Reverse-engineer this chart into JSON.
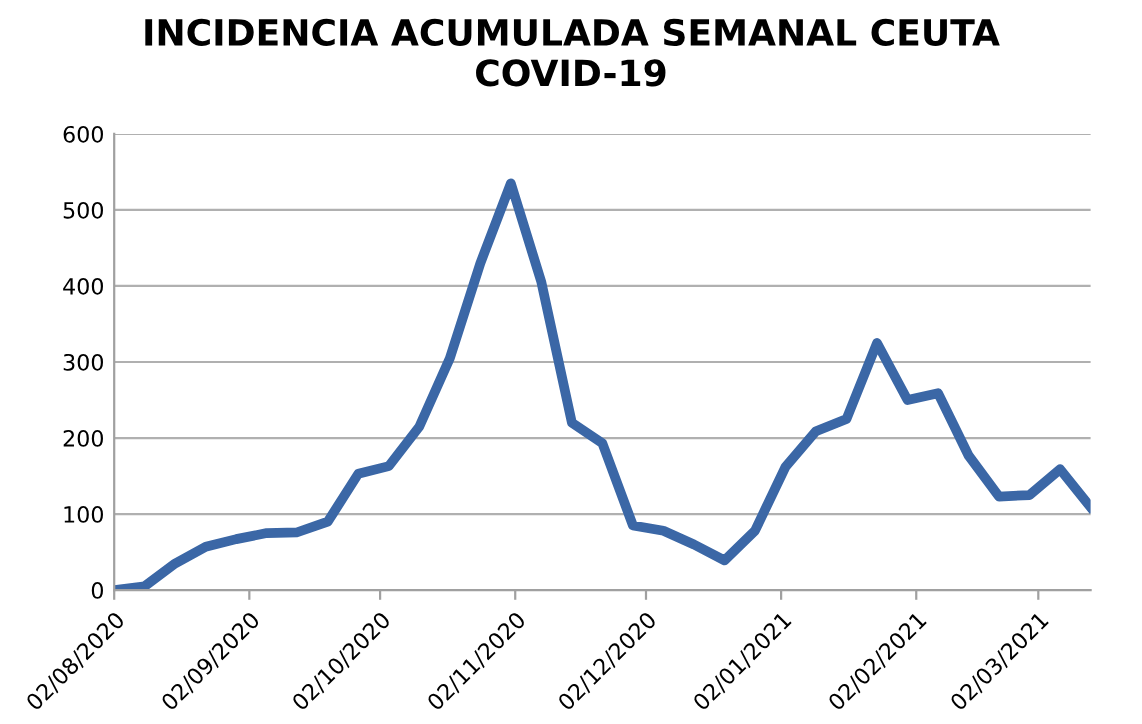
{
  "chart_data": {
    "type": "line",
    "title": "INCIDENCIA ACUMULADA SEMANAL CEUTA\nCOVID-19",
    "x": [
      "2020-08-02",
      "2020-08-09",
      "2020-08-16",
      "2020-08-23",
      "2020-08-30",
      "2020-09-06",
      "2020-09-13",
      "2020-09-20",
      "2020-09-27",
      "2020-10-04",
      "2020-10-11",
      "2020-10-18",
      "2020-10-25",
      "2020-11-01",
      "2020-11-08",
      "2020-11-15",
      "2020-11-22",
      "2020-11-29",
      "2020-12-06",
      "2020-12-13",
      "2020-12-20",
      "2020-12-27",
      "2021-01-03",
      "2021-01-10",
      "2021-01-17",
      "2021-01-24",
      "2021-01-31",
      "2021-02-07",
      "2021-02-14",
      "2021-02-21",
      "2021-02-28",
      "2021-03-07",
      "2021-03-14"
    ],
    "series": [
      {
        "color": "#3b67a6",
        "values": [
          0,
          5,
          35,
          57,
          67,
          75,
          76,
          90,
          153,
          163,
          215,
          305,
          430,
          535,
          405,
          220,
          193,
          85,
          78,
          60,
          39,
          78,
          162,
          209,
          225,
          325,
          250,
          259,
          177,
          123,
          125,
          159,
          109
        ]
      }
    ],
    "xlim": [
      "2020-08-02",
      "2021-03-14"
    ],
    "xticks": [
      {
        "value": "2020-08-02",
        "label": "02/08/2020"
      },
      {
        "value": "2020-09-02",
        "label": "02/09/2020"
      },
      {
        "value": "2020-10-02",
        "label": "02/10/2020"
      },
      {
        "value": "2020-11-02",
        "label": "02/11/2020"
      },
      {
        "value": "2020-12-02",
        "label": "02/12/2020"
      },
      {
        "value": "2021-01-02",
        "label": "02/01/2021"
      },
      {
        "value": "2021-02-02",
        "label": "02/02/2021"
      },
      {
        "value": "2021-03-02",
        "label": "02/03/2021"
      }
    ],
    "ylim": [
      0,
      600
    ],
    "yticks": [
      0,
      100,
      200,
      300,
      400,
      500,
      600
    ],
    "grid": "y",
    "legend": false,
    "marker": "none",
    "line_style": "solid"
  }
}
